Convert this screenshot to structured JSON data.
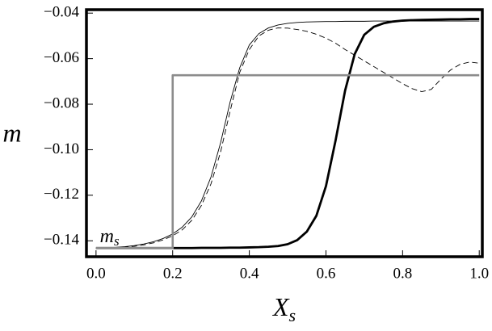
{
  "chart_data": {
    "type": "line",
    "xlabel": "X",
    "xlabel_sub": "s",
    "ylabel": "m",
    "annotation": {
      "text": "m",
      "sub": "s",
      "x": 0.01,
      "y": -0.1385
    },
    "xlim": [
      -0.025,
      1.008
    ],
    "ylim": [
      -0.147,
      -0.0385
    ],
    "xticks": [
      {
        "value": 0,
        "label": "0.0"
      },
      0.2,
      0.4,
      0.6,
      0.8,
      {
        "value": 1,
        "label": "1.0"
      }
    ],
    "yticks": [
      {
        "value": -0.14,
        "label": "−0.14"
      },
      {
        "value": -0.12,
        "label": "−0.12"
      },
      {
        "value": -0.1,
        "label": "−0.10"
      },
      {
        "value": -0.08,
        "label": "−0.08"
      },
      {
        "value": -0.06,
        "label": "−0.06"
      },
      {
        "value": -0.04,
        "label": "−0.04"
      }
    ],
    "x": [
      0,
      0.025,
      0.05,
      0.075,
      0.1,
      0.125,
      0.15,
      0.175,
      0.2,
      0.225,
      0.25,
      0.275,
      0.3,
      0.325,
      0.35,
      0.375,
      0.4,
      0.425,
      0.45,
      0.475,
      0.5,
      0.525,
      0.55,
      0.575,
      0.6,
      0.625,
      0.65,
      0.675,
      0.7,
      0.725,
      0.75,
      0.775,
      0.8,
      0.825,
      0.85,
      0.875,
      0.9,
      0.925,
      0.95,
      0.975,
      1
    ],
    "series": [
      {
        "color": "#000000",
        "width": 0.9,
        "dash": false,
        "values": [
          -0.1432,
          -0.1431,
          -0.1429,
          -0.1426,
          -0.1421,
          -0.1414,
          -0.1404,
          -0.139,
          -0.137,
          -0.134,
          -0.1295,
          -0.1225,
          -0.112,
          -0.097,
          -0.079,
          -0.064,
          -0.054,
          -0.049,
          -0.0465,
          -0.0452,
          -0.0445,
          -0.0441,
          -0.0439,
          -0.0438,
          -0.0437,
          -0.0437,
          -0.0436,
          -0.0436,
          -0.0436,
          -0.0435,
          -0.0435,
          -0.0435,
          -0.0435,
          -0.0435,
          -0.0435,
          -0.0435,
          -0.0435,
          -0.0435,
          -0.0435,
          -0.0435,
          -0.0435
        ]
      },
      {
        "color": "#000000",
        "width": 0.9,
        "dash": true,
        "values": [
          -0.1432,
          -0.1431,
          -0.143,
          -0.1428,
          -0.1424,
          -0.1418,
          -0.1409,
          -0.1396,
          -0.1378,
          -0.1352,
          -0.131,
          -0.1245,
          -0.115,
          -0.101,
          -0.083,
          -0.066,
          -0.056,
          -0.05,
          -0.0475,
          -0.0465,
          -0.0466,
          -0.0472,
          -0.048,
          -0.0493,
          -0.051,
          -0.0532,
          -0.056,
          -0.0585,
          -0.061,
          -0.0635,
          -0.066,
          -0.0685,
          -0.071,
          -0.0732,
          -0.0745,
          -0.0735,
          -0.069,
          -0.065,
          -0.0625,
          -0.0615,
          -0.062
        ]
      },
      {
        "color": "#000000",
        "width": 2.8,
        "dash": false,
        "values": [
          -0.1432,
          -0.1432,
          -0.1432,
          -0.1432,
          -0.1432,
          -0.1432,
          -0.1432,
          -0.1432,
          -0.1432,
          -0.1432,
          -0.1432,
          -0.1431,
          -0.1431,
          -0.1431,
          -0.143,
          -0.143,
          -0.1429,
          -0.1428,
          -0.1426,
          -0.1423,
          -0.1415,
          -0.1397,
          -0.136,
          -0.129,
          -0.116,
          -0.096,
          -0.074,
          -0.058,
          -0.0495,
          -0.046,
          -0.0445,
          -0.0437,
          -0.0433,
          -0.0431,
          -0.043,
          -0.0429,
          -0.0428,
          -0.0427,
          -0.0427,
          -0.0426,
          -0.0426
        ]
      },
      {
        "color": "#8c8c8c",
        "width": 2.6,
        "dash": false,
        "x": [
          0,
          0.2,
          0.2,
          1
        ],
        "values": [
          -0.1432,
          -0.1432,
          -0.0673,
          -0.0673
        ]
      }
    ]
  }
}
